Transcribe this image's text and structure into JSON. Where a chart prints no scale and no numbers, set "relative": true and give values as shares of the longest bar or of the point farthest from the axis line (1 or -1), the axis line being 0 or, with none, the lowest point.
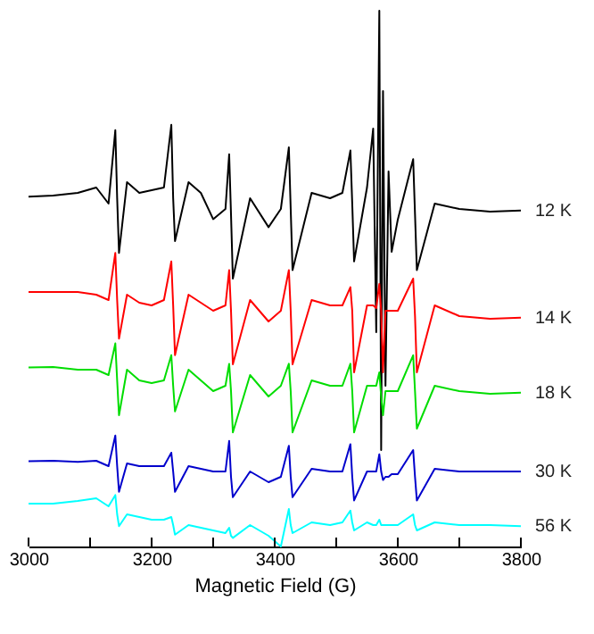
{
  "chart_data": {
    "type": "line",
    "relative": true,
    "xlabel": "Magnetic Field (G)",
    "xlim": [
      3000,
      3800
    ],
    "xticks": [
      3000,
      {
        "value": 3100,
        "label": null
      },
      3200,
      {
        "value": 3300,
        "label": null
      },
      3400,
      {
        "value": 3500,
        "label": null
      },
      3600,
      {
        "value": 3700,
        "label": null
      },
      3800
    ],
    "grid": false,
    "marker": "none",
    "line_style": "solid",
    "x": [
      3000,
      3040,
      3080,
      3110,
      3130,
      3141,
      3144,
      3147,
      3160,
      3180,
      3200,
      3220,
      3232,
      3235,
      3238,
      3260,
      3280,
      3300,
      3320,
      3326,
      3329,
      3332,
      3360,
      3390,
      3410,
      3423,
      3426,
      3429,
      3460,
      3490,
      3510,
      3523,
      3526,
      3529,
      3550,
      3560,
      3565,
      3570,
      3573,
      3576,
      3580,
      3585,
      3590,
      3600,
      3625,
      3628,
      3631,
      3660,
      3700,
      3750,
      3800
    ],
    "series": [
      {
        "name": "12 K",
        "color": "#000000",
        "values": [
          0.653,
          0.655,
          0.66,
          0.67,
          0.64,
          0.777,
          0.65,
          0.548,
          0.68,
          0.66,
          0.665,
          0.67,
          0.787,
          0.65,
          0.57,
          0.68,
          0.66,
          0.611,
          0.63,
          0.732,
          0.62,
          0.5,
          0.65,
          0.596,
          0.63,
          0.745,
          0.63,
          0.516,
          0.66,
          0.65,
          0.66,
          0.739,
          0.64,
          0.532,
          0.67,
          0.78,
          0.4,
          1.0,
          0.18,
          0.85,
          0.3,
          0.7,
          0.55,
          0.61,
          0.723,
          0.62,
          0.516,
          0.64,
          0.63,
          0.625,
          0.627
        ]
      },
      {
        "name": "14 K",
        "color": "#ff0000",
        "values": [
          0.475,
          0.475,
          0.475,
          0.47,
          0.46,
          0.548,
          0.46,
          0.388,
          0.47,
          0.455,
          0.45,
          0.46,
          0.532,
          0.45,
          0.357,
          0.47,
          0.455,
          0.44,
          0.45,
          0.516,
          0.44,
          0.34,
          0.46,
          0.42,
          0.44,
          0.516,
          0.44,
          0.34,
          0.46,
          0.45,
          0.45,
          0.484,
          0.44,
          0.325,
          0.45,
          0.45,
          0.445,
          0.49,
          0.44,
          0.325,
          0.44,
          0.44,
          0.44,
          0.44,
          0.5,
          0.43,
          0.325,
          0.45,
          0.43,
          0.425,
          0.427
        ]
      },
      {
        "name": "18 K",
        "color": "#00dd00",
        "values": [
          0.334,
          0.335,
          0.33,
          0.33,
          0.32,
          0.379,
          0.31,
          0.245,
          0.33,
          0.31,
          0.305,
          0.31,
          0.357,
          0.3,
          0.252,
          0.33,
          0.31,
          0.29,
          0.3,
          0.341,
          0.29,
          0.213,
          0.32,
          0.28,
          0.3,
          0.341,
          0.29,
          0.213,
          0.31,
          0.3,
          0.3,
          0.341,
          0.29,
          0.213,
          0.3,
          0.3,
          0.3,
          0.325,
          0.28,
          0.245,
          0.29,
          0.29,
          0.29,
          0.29,
          0.357,
          0.29,
          0.22,
          0.3,
          0.29,
          0.285,
          0.287
        ]
      },
      {
        "name": "30 K",
        "color": "#0000cc",
        "values": [
          0.159,
          0.16,
          0.158,
          0.16,
          0.15,
          0.207,
          0.15,
          0.102,
          0.155,
          0.15,
          0.15,
          0.15,
          0.175,
          0.14,
          0.102,
          0.15,
          0.145,
          0.14,
          0.14,
          0.197,
          0.13,
          0.092,
          0.14,
          0.12,
          0.13,
          0.188,
          0.13,
          0.092,
          0.145,
          0.14,
          0.14,
          0.191,
          0.13,
          0.086,
          0.14,
          0.14,
          0.14,
          0.172,
          0.14,
          0.124,
          0.13,
          0.13,
          0.135,
          0.135,
          0.18,
          0.13,
          0.086,
          0.145,
          0.14,
          0.14,
          0.14
        ]
      },
      {
        "name": "56 K",
        "color": "#00ffff",
        "values": [
          0.08,
          0.08,
          0.085,
          0.09,
          0.075,
          0.096,
          0.06,
          0.038,
          0.06,
          0.055,
          0.05,
          0.05,
          0.055,
          0.04,
          0.022,
          0.04,
          0.035,
          0.03,
          0.025,
          0.035,
          0.02,
          0.016,
          0.04,
          0.02,
          0.0,
          0.07,
          0.04,
          0.025,
          0.045,
          0.04,
          0.045,
          0.067,
          0.045,
          0.03,
          0.045,
          0.04,
          0.04,
          0.05,
          0.04,
          0.04,
          0.04,
          0.04,
          0.04,
          0.04,
          0.06,
          0.04,
          0.03,
          0.045,
          0.04,
          0.04,
          0.038
        ]
      }
    ]
  }
}
